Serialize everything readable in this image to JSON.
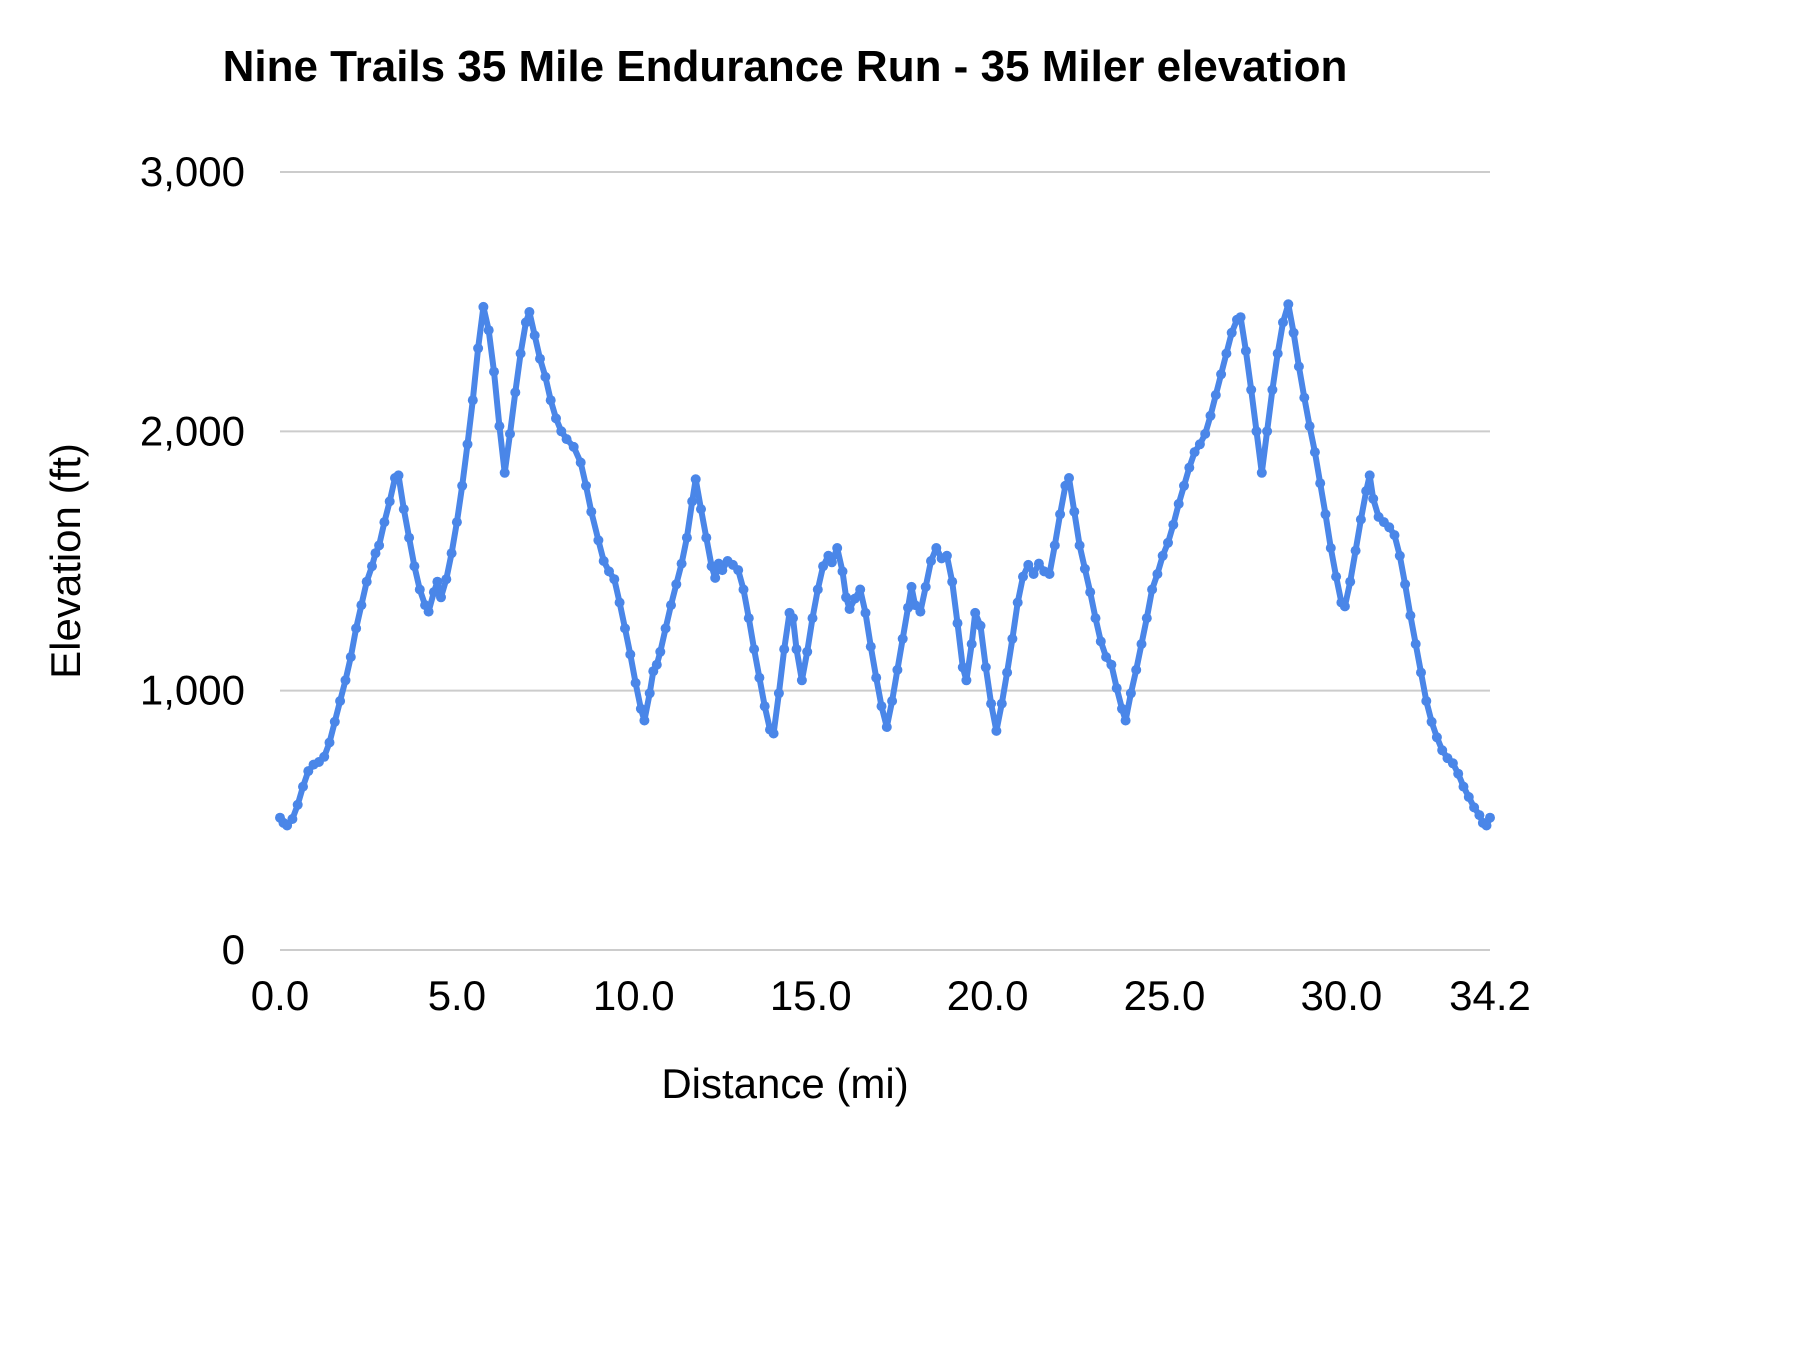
{
  "chart_data": {
    "type": "line",
    "title": "Nine Trails 35 Mile Endurance Run - 35 Miler elevation",
    "xlabel": "Distance (mi)",
    "ylabel": "Elevation (ft)",
    "xlim": [
      0,
      34.2
    ],
    "ylim": [
      0,
      3000
    ],
    "x_ticks": [
      0.0,
      5.0,
      10.0,
      15.0,
      20.0,
      25.0,
      30.0,
      34.2
    ],
    "x_tick_labels": [
      "0.0",
      "5.0",
      "10.0",
      "15.0",
      "20.0",
      "25.0",
      "30.0",
      "34.2"
    ],
    "y_ticks": [
      0,
      1000,
      2000,
      3000
    ],
    "y_tick_labels": [
      "0",
      "1,000",
      "2,000",
      "3,000"
    ],
    "grid": "horizontal",
    "gridline_color": "#cccccc",
    "line_color": "#4a86e8",
    "marker": "circle",
    "legend": "none",
    "series": [
      {
        "name": "Elevation",
        "points": [
          [
            0.0,
            510
          ],
          [
            0.1,
            490
          ],
          [
            0.2,
            480
          ],
          [
            0.35,
            505
          ],
          [
            0.5,
            560
          ],
          [
            0.65,
            630
          ],
          [
            0.8,
            690
          ],
          [
            0.95,
            715
          ],
          [
            1.1,
            725
          ],
          [
            1.25,
            745
          ],
          [
            1.4,
            800
          ],
          [
            1.55,
            880
          ],
          [
            1.7,
            960
          ],
          [
            1.85,
            1040
          ],
          [
            2.0,
            1130
          ],
          [
            2.15,
            1240
          ],
          [
            2.3,
            1330
          ],
          [
            2.45,
            1420
          ],
          [
            2.6,
            1480
          ],
          [
            2.7,
            1530
          ],
          [
            2.8,
            1560
          ],
          [
            2.95,
            1650
          ],
          [
            3.1,
            1730
          ],
          [
            3.25,
            1820
          ],
          [
            3.35,
            1830
          ],
          [
            3.5,
            1700
          ],
          [
            3.65,
            1590
          ],
          [
            3.8,
            1480
          ],
          [
            3.95,
            1390
          ],
          [
            4.1,
            1330
          ],
          [
            4.2,
            1305
          ],
          [
            4.35,
            1380
          ],
          [
            4.45,
            1420
          ],
          [
            4.55,
            1360
          ],
          [
            4.7,
            1430
          ],
          [
            4.85,
            1530
          ],
          [
            5.0,
            1650
          ],
          [
            5.15,
            1790
          ],
          [
            5.3,
            1950
          ],
          [
            5.45,
            2120
          ],
          [
            5.6,
            2320
          ],
          [
            5.75,
            2480
          ],
          [
            5.9,
            2390
          ],
          [
            6.05,
            2230
          ],
          [
            6.2,
            2020
          ],
          [
            6.35,
            1840
          ],
          [
            6.5,
            1990
          ],
          [
            6.65,
            2150
          ],
          [
            6.8,
            2300
          ],
          [
            6.95,
            2420
          ],
          [
            7.05,
            2460
          ],
          [
            7.2,
            2370
          ],
          [
            7.35,
            2280
          ],
          [
            7.5,
            2210
          ],
          [
            7.65,
            2120
          ],
          [
            7.8,
            2050
          ],
          [
            7.95,
            2000
          ],
          [
            8.1,
            1970
          ],
          [
            8.3,
            1940
          ],
          [
            8.5,
            1880
          ],
          [
            8.65,
            1790
          ],
          [
            8.8,
            1690
          ],
          [
            9.0,
            1580
          ],
          [
            9.15,
            1500
          ],
          [
            9.3,
            1460
          ],
          [
            9.45,
            1430
          ],
          [
            9.6,
            1340
          ],
          [
            9.75,
            1240
          ],
          [
            9.9,
            1140
          ],
          [
            10.05,
            1030
          ],
          [
            10.2,
            930
          ],
          [
            10.3,
            885
          ],
          [
            10.45,
            990
          ],
          [
            10.55,
            1075
          ],
          [
            10.65,
            1100
          ],
          [
            10.75,
            1150
          ],
          [
            10.9,
            1240
          ],
          [
            11.05,
            1330
          ],
          [
            11.2,
            1410
          ],
          [
            11.35,
            1490
          ],
          [
            11.5,
            1590
          ],
          [
            11.65,
            1730
          ],
          [
            11.75,
            1815
          ],
          [
            11.9,
            1700
          ],
          [
            12.05,
            1590
          ],
          [
            12.2,
            1480
          ],
          [
            12.3,
            1435
          ],
          [
            12.4,
            1490
          ],
          [
            12.5,
            1465
          ],
          [
            12.65,
            1500
          ],
          [
            12.8,
            1485
          ],
          [
            12.95,
            1465
          ],
          [
            13.1,
            1390
          ],
          [
            13.25,
            1280
          ],
          [
            13.4,
            1160
          ],
          [
            13.55,
            1050
          ],
          [
            13.7,
            940
          ],
          [
            13.85,
            850
          ],
          [
            13.95,
            835
          ],
          [
            14.1,
            990
          ],
          [
            14.25,
            1160
          ],
          [
            14.4,
            1300
          ],
          [
            14.5,
            1280
          ],
          [
            14.6,
            1160
          ],
          [
            14.75,
            1040
          ],
          [
            14.9,
            1150
          ],
          [
            15.05,
            1280
          ],
          [
            15.2,
            1390
          ],
          [
            15.35,
            1480
          ],
          [
            15.5,
            1520
          ],
          [
            15.6,
            1495
          ],
          [
            15.75,
            1550
          ],
          [
            15.9,
            1460
          ],
          [
            16.0,
            1360
          ],
          [
            16.1,
            1315
          ],
          [
            16.25,
            1355
          ],
          [
            16.4,
            1390
          ],
          [
            16.55,
            1300
          ],
          [
            16.7,
            1170
          ],
          [
            16.85,
            1050
          ],
          [
            17.0,
            940
          ],
          [
            17.15,
            860
          ],
          [
            17.3,
            960
          ],
          [
            17.45,
            1080
          ],
          [
            17.6,
            1200
          ],
          [
            17.75,
            1320
          ],
          [
            17.85,
            1400
          ],
          [
            17.95,
            1330
          ],
          [
            18.1,
            1305
          ],
          [
            18.25,
            1400
          ],
          [
            18.4,
            1500
          ],
          [
            18.55,
            1550
          ],
          [
            18.7,
            1510
          ],
          [
            18.85,
            1520
          ],
          [
            19.0,
            1420
          ],
          [
            19.15,
            1260
          ],
          [
            19.3,
            1090
          ],
          [
            19.4,
            1040
          ],
          [
            19.55,
            1180
          ],
          [
            19.65,
            1300
          ],
          [
            19.8,
            1250
          ],
          [
            19.95,
            1090
          ],
          [
            20.1,
            950
          ],
          [
            20.25,
            845
          ],
          [
            20.4,
            950
          ],
          [
            20.55,
            1070
          ],
          [
            20.7,
            1200
          ],
          [
            20.85,
            1340
          ],
          [
            21.0,
            1440
          ],
          [
            21.15,
            1485
          ],
          [
            21.3,
            1450
          ],
          [
            21.45,
            1490
          ],
          [
            21.6,
            1460
          ],
          [
            21.75,
            1450
          ],
          [
            21.9,
            1560
          ],
          [
            22.05,
            1680
          ],
          [
            22.2,
            1790
          ],
          [
            22.3,
            1820
          ],
          [
            22.45,
            1690
          ],
          [
            22.6,
            1560
          ],
          [
            22.75,
            1470
          ],
          [
            22.9,
            1380
          ],
          [
            23.05,
            1280
          ],
          [
            23.2,
            1190
          ],
          [
            23.35,
            1130
          ],
          [
            23.5,
            1100
          ],
          [
            23.65,
            1010
          ],
          [
            23.8,
            930
          ],
          [
            23.9,
            885
          ],
          [
            24.05,
            990
          ],
          [
            24.2,
            1080
          ],
          [
            24.35,
            1180
          ],
          [
            24.5,
            1280
          ],
          [
            24.65,
            1390
          ],
          [
            24.8,
            1450
          ],
          [
            24.95,
            1520
          ],
          [
            25.1,
            1570
          ],
          [
            25.25,
            1640
          ],
          [
            25.4,
            1720
          ],
          [
            25.55,
            1790
          ],
          [
            25.7,
            1860
          ],
          [
            25.85,
            1920
          ],
          [
            26.0,
            1950
          ],
          [
            26.15,
            1990
          ],
          [
            26.3,
            2060
          ],
          [
            26.45,
            2140
          ],
          [
            26.6,
            2220
          ],
          [
            26.75,
            2300
          ],
          [
            26.9,
            2380
          ],
          [
            27.05,
            2430
          ],
          [
            27.15,
            2440
          ],
          [
            27.3,
            2310
          ],
          [
            27.45,
            2160
          ],
          [
            27.6,
            2000
          ],
          [
            27.75,
            1840
          ],
          [
            27.9,
            2000
          ],
          [
            28.05,
            2160
          ],
          [
            28.2,
            2300
          ],
          [
            28.35,
            2420
          ],
          [
            28.5,
            2490
          ],
          [
            28.65,
            2380
          ],
          [
            28.8,
            2250
          ],
          [
            28.95,
            2130
          ],
          [
            29.1,
            2020
          ],
          [
            29.25,
            1920
          ],
          [
            29.4,
            1800
          ],
          [
            29.55,
            1680
          ],
          [
            29.7,
            1550
          ],
          [
            29.85,
            1440
          ],
          [
            30.0,
            1340
          ],
          [
            30.1,
            1325
          ],
          [
            30.25,
            1420
          ],
          [
            30.4,
            1540
          ],
          [
            30.55,
            1660
          ],
          [
            30.7,
            1770
          ],
          [
            30.8,
            1830
          ],
          [
            30.9,
            1740
          ],
          [
            31.05,
            1670
          ],
          [
            31.2,
            1650
          ],
          [
            31.35,
            1630
          ],
          [
            31.5,
            1600
          ],
          [
            31.65,
            1520
          ],
          [
            31.8,
            1410
          ],
          [
            31.95,
            1290
          ],
          [
            32.1,
            1180
          ],
          [
            32.25,
            1070
          ],
          [
            32.4,
            960
          ],
          [
            32.55,
            880
          ],
          [
            32.7,
            820
          ],
          [
            32.85,
            770
          ],
          [
            33.0,
            740
          ],
          [
            33.15,
            720
          ],
          [
            33.3,
            680
          ],
          [
            33.45,
            630
          ],
          [
            33.6,
            590
          ],
          [
            33.75,
            550
          ],
          [
            33.9,
            520
          ],
          [
            34.0,
            490
          ],
          [
            34.1,
            480
          ],
          [
            34.2,
            510
          ]
        ]
      }
    ]
  }
}
